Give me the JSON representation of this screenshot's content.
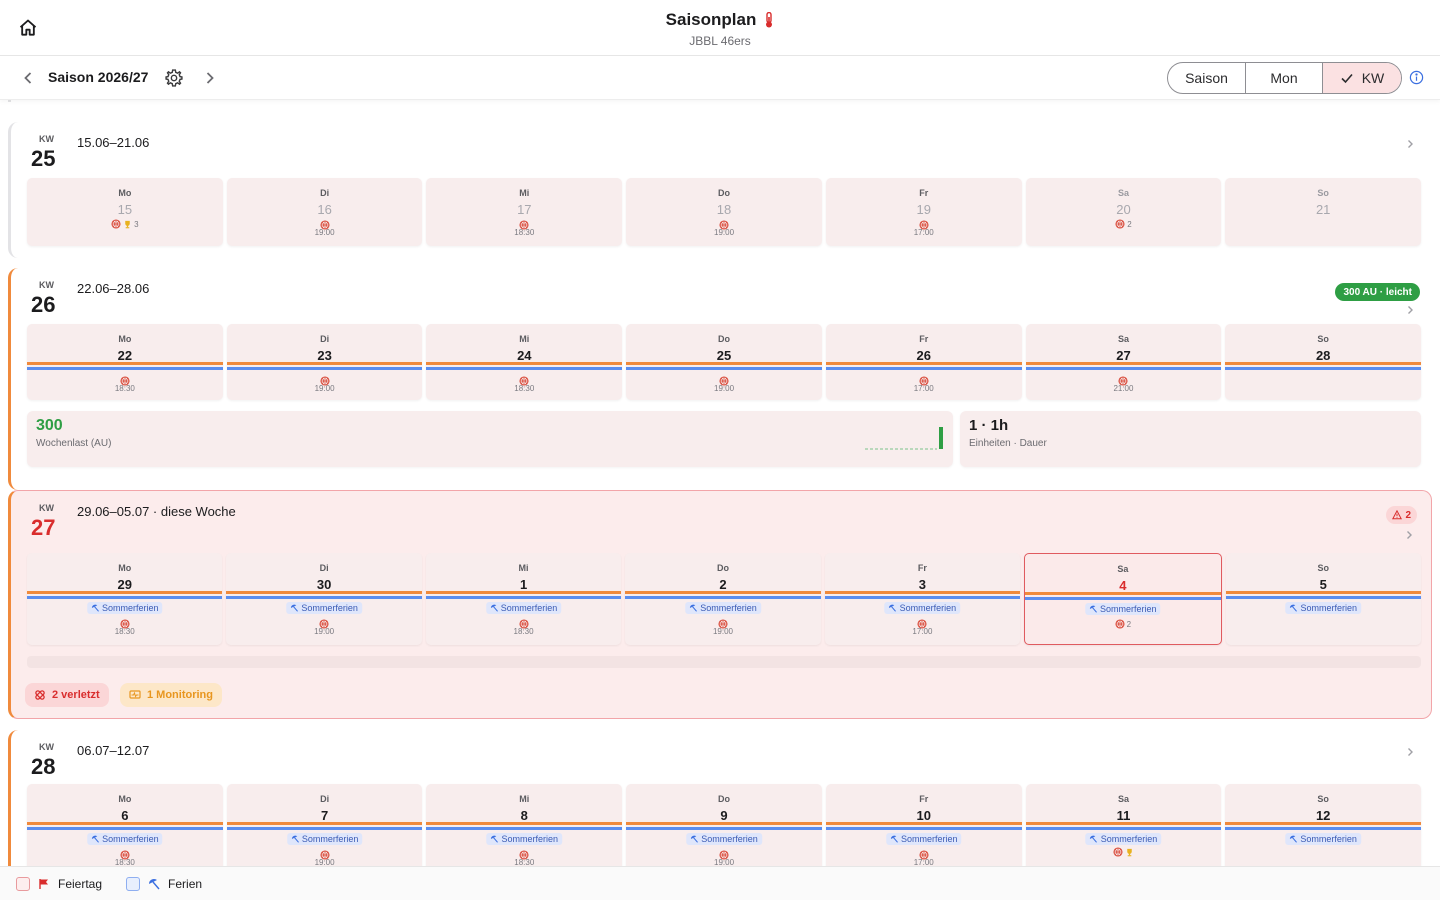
{
  "header": {
    "title": "Saisonplan",
    "subtitle": "JBBL 46ers",
    "home_icon": "home-icon",
    "title_icon": "thermometer-icon"
  },
  "nav": {
    "season_label": "Saison 2026/27",
    "view_options": [
      {
        "label": "Saison",
        "active": false
      },
      {
        "label": "Mon",
        "active": false
      },
      {
        "label": "KW",
        "active": true
      }
    ]
  },
  "weeks": [
    {
      "kw_label": "KW",
      "kw": "25",
      "range": "15.06–21.06",
      "days": [
        {
          "name": "Mo",
          "num": "15",
          "extra": "3"
        },
        {
          "name": "Di",
          "num": "16",
          "time": "19:00"
        },
        {
          "name": "Mi",
          "num": "17",
          "time": "18:30"
        },
        {
          "name": "Do",
          "num": "18",
          "time": "19:00"
        },
        {
          "name": "Fr",
          "num": "19",
          "time": "17:00"
        },
        {
          "name": "Sa",
          "num": "20",
          "extra": "2"
        },
        {
          "name": "So",
          "num": "21"
        }
      ]
    },
    {
      "kw_label": "KW",
      "kw": "26",
      "range": "22.06–28.06",
      "badge": "300 AU · leicht",
      "days": [
        {
          "name": "Mo",
          "num": "22",
          "time": "18:30"
        },
        {
          "name": "Di",
          "num": "23",
          "time": "19:00"
        },
        {
          "name": "Mi",
          "num": "24",
          "time": "18:30"
        },
        {
          "name": "Do",
          "num": "25",
          "time": "19:00"
        },
        {
          "name": "Fr",
          "num": "26",
          "time": "17:00"
        },
        {
          "name": "Sa",
          "num": "27",
          "time": "21:00"
        },
        {
          "name": "So",
          "num": "28"
        }
      ],
      "load": {
        "value": "300",
        "label": "Wochenlast (AU)"
      },
      "units": {
        "value": "1 · 1h",
        "label": "Einheiten · Dauer"
      }
    },
    {
      "kw_label": "KW",
      "kw": "27",
      "range": "29.06–05.07 · diese Woche",
      "warning_count": "2",
      "holiday": "Sommerferien",
      "days": [
        {
          "name": "Mo",
          "num": "29",
          "time": "18:30"
        },
        {
          "name": "Di",
          "num": "30",
          "time": "19:00"
        },
        {
          "name": "Mi",
          "num": "1",
          "time": "18:30"
        },
        {
          "name": "Do",
          "num": "2",
          "time": "19:00"
        },
        {
          "name": "Fr",
          "num": "3",
          "time": "17:00"
        },
        {
          "name": "Sa",
          "num": "4",
          "extra": "2"
        },
        {
          "name": "So",
          "num": "5"
        }
      ],
      "chips": {
        "injured": "2 verletzt",
        "monitoring": "1 Monitoring"
      }
    },
    {
      "kw_label": "KW",
      "kw": "28",
      "range": "06.07–12.07",
      "holiday": "Sommerferien",
      "days": [
        {
          "name": "Mo",
          "num": "6",
          "time": "18:30"
        },
        {
          "name": "Di",
          "num": "7",
          "time": "19:00"
        },
        {
          "name": "Mi",
          "num": "8",
          "time": "18:30"
        },
        {
          "name": "Do",
          "num": "9",
          "time": "19:00"
        },
        {
          "name": "Fr",
          "num": "10",
          "time": "17:00"
        },
        {
          "name": "Sa",
          "num": "11"
        },
        {
          "name": "So",
          "num": "12"
        }
      ]
    }
  ],
  "legend": {
    "holiday": "Feiertag",
    "vacation": "Ferien"
  },
  "colors": {
    "accent": "#f08a3c",
    "vacation": "#5b8def",
    "today": "#d92d2d",
    "load_green": "#2e9e44"
  }
}
